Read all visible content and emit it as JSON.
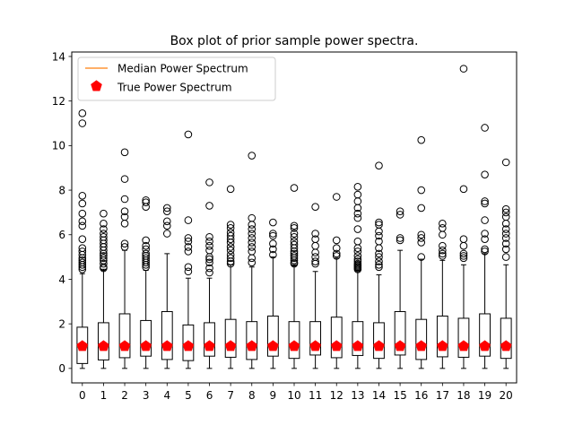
{
  "chart_data": {
    "type": "box",
    "title": "Box plot of prior sample power spectra.",
    "xlabel": "",
    "ylabel": "",
    "xlim": [
      -0.5,
      20.5
    ],
    "ylim": [
      -0.65,
      14.2
    ],
    "y_ticks": [
      0,
      2,
      4,
      6,
      8,
      10,
      12,
      14
    ],
    "categories": [
      "0",
      "1",
      "2",
      "3",
      "4",
      "5",
      "6",
      "7",
      "8",
      "9",
      "10",
      "11",
      "12",
      "13",
      "14",
      "15",
      "16",
      "17",
      "18",
      "19",
      "20"
    ],
    "legend": {
      "placement": "upper-left",
      "entries": [
        {
          "label": "Median Power Spectrum",
          "marker": "line",
          "color": "#ff7f0e"
        },
        {
          "label": "True Power Spectrum",
          "marker": "pentagon",
          "color": "#ff0000"
        }
      ]
    },
    "boxes": [
      {
        "q1": 0.22,
        "median": 1.0,
        "q3": 1.85,
        "whisker_low": 0.0,
        "whisker_high": 4.25,
        "fliers": [
          4.45,
          4.55,
          4.65,
          4.75,
          4.85,
          4.95,
          5.1,
          5.25,
          5.4,
          5.8,
          6.4,
          6.6,
          6.95,
          7.4,
          7.75,
          11.0,
          11.45
        ]
      },
      {
        "q1": 0.38,
        "median": 1.0,
        "q3": 2.05,
        "whisker_low": 0.0,
        "whisker_high": 4.45,
        "fliers": [
          4.5,
          4.55,
          4.7,
          4.85,
          4.95,
          5.05,
          5.15,
          5.3,
          5.45,
          5.6,
          5.75,
          5.9,
          6.05,
          6.25,
          6.5,
          6.95
        ]
      },
      {
        "q1": 0.48,
        "median": 1.0,
        "q3": 2.45,
        "whisker_low": 0.0,
        "whisker_high": 5.3,
        "fliers": [
          5.45,
          5.6,
          6.5,
          6.8,
          7.05,
          7.6,
          8.5,
          9.7
        ]
      },
      {
        "q1": 0.55,
        "median": 1.0,
        "q3": 2.15,
        "whisker_low": 0.0,
        "whisker_high": 4.4,
        "fliers": [
          4.55,
          4.65,
          4.75,
          4.85,
          4.95,
          5.05,
          5.15,
          5.35,
          5.5,
          5.75,
          7.25,
          7.45,
          7.55
        ]
      },
      {
        "q1": 0.4,
        "median": 1.0,
        "q3": 2.55,
        "whisker_low": 0.0,
        "whisker_high": 5.15,
        "fliers": [
          6.05,
          6.4,
          6.6,
          7.05,
          7.2
        ]
      },
      {
        "q1": 0.35,
        "median": 1.0,
        "q3": 1.95,
        "whisker_low": 0.0,
        "whisker_high": 4.05,
        "fliers": [
          4.35,
          4.55,
          5.25,
          5.45,
          5.7,
          5.85,
          6.65,
          10.5
        ]
      },
      {
        "q1": 0.55,
        "median": 1.0,
        "q3": 2.05,
        "whisker_low": 0.0,
        "whisker_high": 4.05,
        "fliers": [
          4.3,
          4.5,
          4.75,
          4.9,
          5.0,
          5.3,
          5.5,
          5.7,
          5.9,
          7.3,
          8.35
        ]
      },
      {
        "q1": 0.5,
        "median": 1.0,
        "q3": 2.2,
        "whisker_low": 0.0,
        "whisker_high": 4.65,
        "fliers": [
          4.7,
          4.8,
          4.95,
          5.1,
          5.3,
          5.45,
          5.65,
          5.8,
          5.95,
          6.1,
          6.3,
          6.45,
          8.05
        ]
      },
      {
        "q1": 0.4,
        "median": 1.0,
        "q3": 2.1,
        "whisker_low": 0.0,
        "whisker_high": 4.55,
        "fliers": [
          4.75,
          4.95,
          5.25,
          5.45,
          5.65,
          5.85,
          6.05,
          6.25,
          6.45,
          6.75,
          9.55
        ]
      },
      {
        "q1": 0.55,
        "median": 1.0,
        "q3": 2.35,
        "whisker_low": 0.0,
        "whisker_high": 5.0,
        "fliers": [
          5.1,
          5.35,
          5.6,
          5.95,
          6.05,
          6.55
        ]
      },
      {
        "q1": 0.45,
        "median": 1.0,
        "q3": 2.1,
        "whisker_low": 0.0,
        "whisker_high": 4.65,
        "fliers": [
          4.7,
          4.75,
          4.85,
          4.95,
          5.05,
          5.15,
          5.25,
          5.4,
          5.55,
          5.7,
          5.9,
          6.05,
          6.3,
          6.4,
          8.1
        ]
      },
      {
        "q1": 0.6,
        "median": 1.0,
        "q3": 2.1,
        "whisker_low": 0.0,
        "whisker_high": 4.35,
        "fliers": [
          4.7,
          4.8,
          5.0,
          5.2,
          5.5,
          5.8,
          6.05,
          7.25
        ]
      },
      {
        "q1": 0.48,
        "median": 1.0,
        "q3": 2.3,
        "whisker_low": 0.0,
        "whisker_high": 4.95,
        "fliers": [
          5.05,
          5.15,
          5.4,
          5.75,
          7.7
        ]
      },
      {
        "q1": 0.58,
        "median": 1.0,
        "q3": 2.1,
        "whisker_low": 0.0,
        "whisker_high": 4.4,
        "fliers": [
          4.45,
          4.5,
          4.55,
          4.6,
          4.65,
          4.7,
          4.8,
          4.9,
          5.05,
          5.25,
          5.4,
          5.7,
          6.25,
          6.75,
          6.95,
          7.2,
          7.5,
          7.8,
          8.15
        ]
      },
      {
        "q1": 0.45,
        "median": 1.0,
        "q3": 2.05,
        "whisker_low": 0.0,
        "whisker_high": 4.2,
        "fliers": [
          4.55,
          4.65,
          4.8,
          5.0,
          5.15,
          5.4,
          5.7,
          5.95,
          6.15,
          6.45,
          6.55,
          9.1
        ]
      },
      {
        "q1": 0.6,
        "median": 1.0,
        "q3": 2.55,
        "whisker_low": 0.0,
        "whisker_high": 5.3,
        "fliers": [
          5.75,
          5.85,
          6.9,
          7.05
        ]
      },
      {
        "q1": 0.4,
        "median": 1.0,
        "q3": 2.2,
        "whisker_low": 0.0,
        "whisker_high": 4.9,
        "fliers": [
          5.0,
          5.65,
          5.85,
          6.0,
          7.2,
          8.0,
          10.25
        ]
      },
      {
        "q1": 0.52,
        "median": 1.0,
        "q3": 2.35,
        "whisker_low": 0.0,
        "whisker_high": 4.85,
        "fliers": [
          5.05,
          5.15,
          5.3,
          5.5,
          6.0,
          6.3,
          6.5
        ]
      },
      {
        "q1": 0.5,
        "median": 1.0,
        "q3": 2.25,
        "whisker_low": 0.0,
        "whisker_high": 4.65,
        "fliers": [
          4.95,
          5.05,
          5.15,
          5.5,
          5.8,
          8.05,
          13.45
        ]
      },
      {
        "q1": 0.55,
        "median": 1.0,
        "q3": 2.45,
        "whisker_low": 0.0,
        "whisker_high": 5.15,
        "fliers": [
          5.25,
          5.35,
          5.8,
          6.05,
          6.65,
          7.4,
          7.5,
          8.7,
          10.8
        ]
      },
      {
        "q1": 0.45,
        "median": 1.0,
        "q3": 2.25,
        "whisker_low": 0.0,
        "whisker_high": 4.65,
        "fliers": [
          5.0,
          5.35,
          5.6,
          5.85,
          6.05,
          6.25,
          6.5,
          6.8,
          7.0,
          7.15,
          9.25
        ]
      }
    ],
    "true_spectrum": [
      1.0,
      1.0,
      1.0,
      1.0,
      1.0,
      1.0,
      1.0,
      1.0,
      1.0,
      1.0,
      1.0,
      1.0,
      1.0,
      1.0,
      1.0,
      1.0,
      1.0,
      1.0,
      1.0,
      1.0,
      1.0
    ],
    "colors": {
      "box": "#000000",
      "median": "#ff7f0e",
      "true": "#ff0000",
      "flier": "#000000"
    }
  }
}
